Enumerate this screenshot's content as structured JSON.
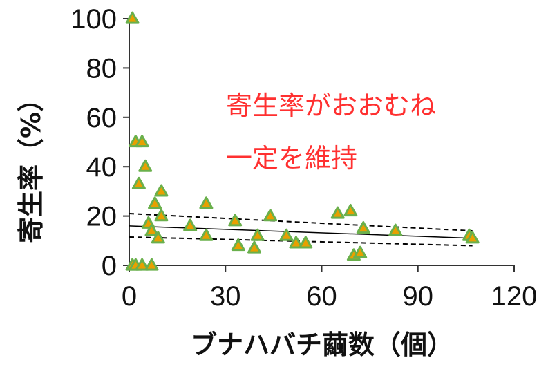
{
  "chart_data": {
    "type": "scatter",
    "xlabel": "ブナハバチ繭数（個）",
    "ylabel": "寄生率（%）",
    "xlim": [
      0,
      120
    ],
    "ylim": [
      0,
      100
    ],
    "xticks": [
      "0",
      "30",
      "60",
      "90",
      "120"
    ],
    "yticks": [
      "0",
      "20",
      "40",
      "60",
      "80",
      "100"
    ],
    "grid": false,
    "annotations": [
      "寄生率がおおむね",
      "一定を維持"
    ],
    "marker_fill": "#e8a000",
    "marker_edge": "#6ab04c",
    "annotation_color": "#ff3030",
    "points": [
      {
        "x": 1,
        "y": 100
      },
      {
        "x": 1,
        "y": 0
      },
      {
        "x": 2,
        "y": 0
      },
      {
        "x": 2,
        "y": 50
      },
      {
        "x": 3,
        "y": 33
      },
      {
        "x": 4,
        "y": 0
      },
      {
        "x": 4,
        "y": 50
      },
      {
        "x": 5,
        "y": 40
      },
      {
        "x": 6,
        "y": 17
      },
      {
        "x": 7,
        "y": 0
      },
      {
        "x": 7,
        "y": 14
      },
      {
        "x": 8,
        "y": 25
      },
      {
        "x": 9,
        "y": 11
      },
      {
        "x": 10,
        "y": 30
      },
      {
        "x": 10,
        "y": 20
      },
      {
        "x": 19,
        "y": 16
      },
      {
        "x": 24,
        "y": 25
      },
      {
        "x": 24,
        "y": 12
      },
      {
        "x": 33,
        "y": 18
      },
      {
        "x": 34,
        "y": 8
      },
      {
        "x": 39,
        "y": 7
      },
      {
        "x": 40,
        "y": 12
      },
      {
        "x": 44,
        "y": 20
      },
      {
        "x": 49,
        "y": 12
      },
      {
        "x": 52,
        "y": 9
      },
      {
        "x": 55,
        "y": 9
      },
      {
        "x": 65,
        "y": 21
      },
      {
        "x": 69,
        "y": 22
      },
      {
        "x": 70,
        "y": 4
      },
      {
        "x": 72,
        "y": 5
      },
      {
        "x": 73,
        "y": 15
      },
      {
        "x": 83,
        "y": 14
      },
      {
        "x": 106,
        "y": 12
      },
      {
        "x": 107,
        "y": 11
      }
    ],
    "regression": {
      "x": [
        0,
        107
      ],
      "y": [
        16,
        11
      ]
    },
    "confidence_upper": {
      "x": [
        0,
        107
      ],
      "y": [
        21,
        14
      ]
    },
    "confidence_lower": {
      "x": [
        0,
        107
      ],
      "y": [
        11.5,
        8
      ]
    }
  }
}
